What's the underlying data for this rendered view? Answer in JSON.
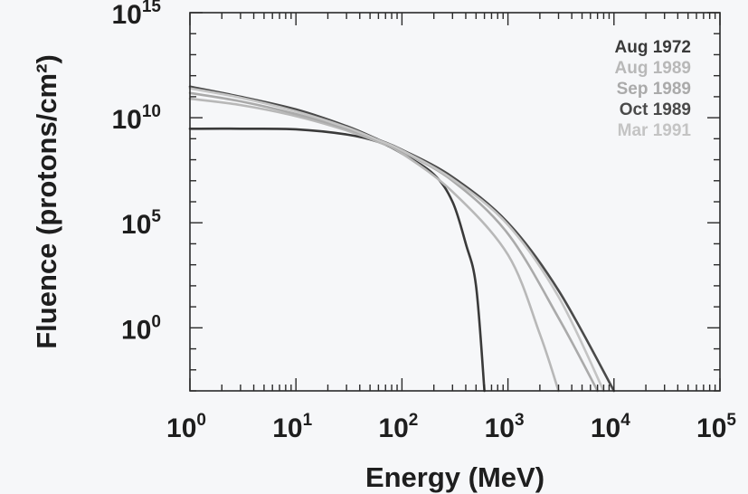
{
  "chart_data": {
    "type": "line",
    "title": "",
    "xlabel": "Energy (MeV)",
    "ylabel": "Fluence (protons/cm²)",
    "x_scale": "log",
    "y_scale": "log",
    "xlim": [
      1,
      100000
    ],
    "ylim": [
      0.001,
      1000000000000000.0
    ],
    "grid": false,
    "legend_position": "top-right",
    "x_ticks": [
      {
        "base": "10",
        "exp": "0"
      },
      {
        "base": "10",
        "exp": "1"
      },
      {
        "base": "10",
        "exp": "2"
      },
      {
        "base": "10",
        "exp": "3"
      },
      {
        "base": "10",
        "exp": "4"
      },
      {
        "base": "10",
        "exp": "5"
      }
    ],
    "y_ticks": [
      {
        "base": "10",
        "exp": "0"
      },
      {
        "base": "10",
        "exp": "5"
      },
      {
        "base": "10",
        "exp": "10"
      },
      {
        "base": "10",
        "exp": "15"
      }
    ],
    "series": [
      {
        "name": "Aug 1972",
        "color": "#3a3a3a",
        "points": [
          [
            1,
            3000000000.0
          ],
          [
            3,
            3000000000.0
          ],
          [
            10,
            2800000000.0
          ],
          [
            30,
            1600000000.0
          ],
          [
            60,
            700000000.0
          ],
          [
            100,
            200000000.0
          ],
          [
            200,
            20000000.0
          ],
          [
            300,
            1000000.0
          ],
          [
            400,
            10000.0
          ],
          [
            500,
            100
          ],
          [
            600,
            0.001
          ]
        ]
      },
      {
        "name": "Aug 1989",
        "color": "#b8b8b8",
        "points": [
          [
            1,
            80000000000.0
          ],
          [
            3,
            40000000000.0
          ],
          [
            10,
            12000000000.0
          ],
          [
            30,
            2500000000.0
          ],
          [
            60,
            700000000.0
          ],
          [
            100,
            200000000.0
          ],
          [
            300,
            3000000.0
          ],
          [
            1000,
            3000.0
          ],
          [
            2000,
            0.5
          ],
          [
            3000,
            0.001
          ]
        ]
      },
      {
        "name": "Sep 1989",
        "color": "#aaaaaa",
        "points": [
          [
            1,
            150000000000.0
          ],
          [
            3,
            60000000000.0
          ],
          [
            10,
            15000000000.0
          ],
          [
            30,
            3000000000.0
          ],
          [
            60,
            800000000.0
          ],
          [
            100,
            250000000.0
          ],
          [
            300,
            10000000.0
          ],
          [
            1000,
            30000.0
          ],
          [
            3000,
            3
          ],
          [
            7000,
            0.001
          ]
        ]
      },
      {
        "name": "Oct 1989",
        "color": "#4a4a4a",
        "points": [
          [
            1,
            300000000000.0
          ],
          [
            3,
            100000000000.0
          ],
          [
            10,
            25000000000.0
          ],
          [
            30,
            4000000000.0
          ],
          [
            60,
            900000000.0
          ],
          [
            100,
            300000000.0
          ],
          [
            300,
            15000000.0
          ],
          [
            1000,
            100000.0
          ],
          [
            3000,
            60
          ],
          [
            10000,
            0.001
          ]
        ]
      },
      {
        "name": "Mar 1991",
        "color": "#c4c4c4",
        "points": [
          [
            1,
            250000000000.0
          ],
          [
            3,
            90000000000.0
          ],
          [
            10,
            20000000000.0
          ],
          [
            30,
            3500000000.0
          ],
          [
            60,
            850000000.0
          ],
          [
            100,
            280000000.0
          ],
          [
            300,
            12000000.0
          ],
          [
            1000,
            80000.0
          ],
          [
            3000,
            30
          ],
          [
            8000,
            0.001
          ]
        ]
      }
    ]
  }
}
